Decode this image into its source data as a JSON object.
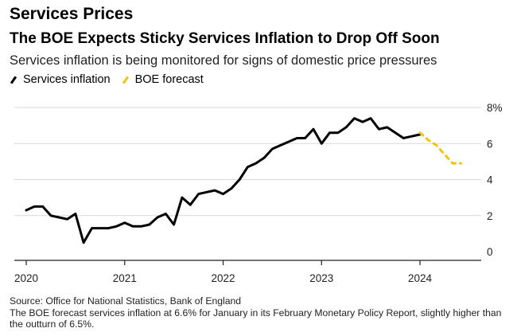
{
  "header": {
    "kicker": "Services Prices",
    "title": "The BOE Expects Sticky Services Inflation to Drop Off Soon",
    "subtitle": "Services inflation is being monitored for signs of domestic price pressures"
  },
  "legend": {
    "items": [
      {
        "label": "Services inflation",
        "color": "#000000"
      },
      {
        "label": "BOE forecast",
        "color": "#f1c40f"
      }
    ]
  },
  "footer": {
    "source": "Source: Office for National Statistics, Bank of England",
    "note": "The BOE forecast services inflation at 6.6% for January in its February Monetary Policy Report, slightly higher than the outturn of 6.5%."
  },
  "chart_data": {
    "type": "line",
    "title": "The BOE Expects Sticky Services Inflation to Drop Off Soon",
    "xlabel": "",
    "ylabel": "",
    "xlim": [
      2020.0,
      2024.667
    ],
    "ylim": [
      0,
      8
    ],
    "x_ticks": [
      2020,
      2021,
      2022,
      2023,
      2024
    ],
    "x_tick_labels": [
      "2020",
      "2021",
      "2022",
      "2023",
      "2024"
    ],
    "y_ticks": [
      0,
      2,
      4,
      6,
      8
    ],
    "y_tick_labels": [
      "0",
      "2",
      "4",
      "6",
      "8%"
    ],
    "y_axis_position": "right",
    "grid": "horizontal",
    "series": [
      {
        "name": "Services inflation",
        "color": "#000000",
        "style": "solid",
        "x": [
          2020.0,
          2020.083,
          2020.167,
          2020.25,
          2020.333,
          2020.417,
          2020.5,
          2020.583,
          2020.667,
          2020.75,
          2020.833,
          2020.917,
          2021.0,
          2021.083,
          2021.167,
          2021.25,
          2021.333,
          2021.417,
          2021.5,
          2021.583,
          2021.667,
          2021.75,
          2021.833,
          2021.917,
          2022.0,
          2022.083,
          2022.167,
          2022.25,
          2022.333,
          2022.417,
          2022.5,
          2022.583,
          2022.667,
          2022.75,
          2022.833,
          2022.917,
          2023.0,
          2023.083,
          2023.167,
          2023.25,
          2023.333,
          2023.417,
          2023.5,
          2023.583,
          2023.667,
          2023.75,
          2023.833,
          2023.917,
          2024.0
        ],
        "y": [
          2.3,
          2.5,
          2.5,
          2.0,
          1.9,
          1.8,
          2.1,
          0.5,
          1.3,
          1.3,
          1.3,
          1.4,
          1.6,
          1.4,
          1.4,
          1.5,
          1.9,
          2.1,
          1.5,
          3.0,
          2.6,
          3.2,
          3.3,
          3.4,
          3.2,
          3.5,
          4.0,
          4.7,
          4.9,
          5.2,
          5.7,
          5.9,
          6.1,
          6.3,
          6.3,
          6.8,
          6.0,
          6.6,
          6.6,
          6.9,
          7.4,
          7.2,
          7.4,
          6.8,
          6.9,
          6.6,
          6.3,
          6.4,
          6.5
        ]
      },
      {
        "name": "BOE forecast",
        "color": "#f1c40f",
        "style": "dashed",
        "x": [
          2024.0,
          2024.083,
          2024.167,
          2024.25,
          2024.333,
          2024.417
        ],
        "y": [
          6.6,
          6.2,
          5.9,
          5.4,
          4.9,
          4.9
        ]
      }
    ]
  }
}
